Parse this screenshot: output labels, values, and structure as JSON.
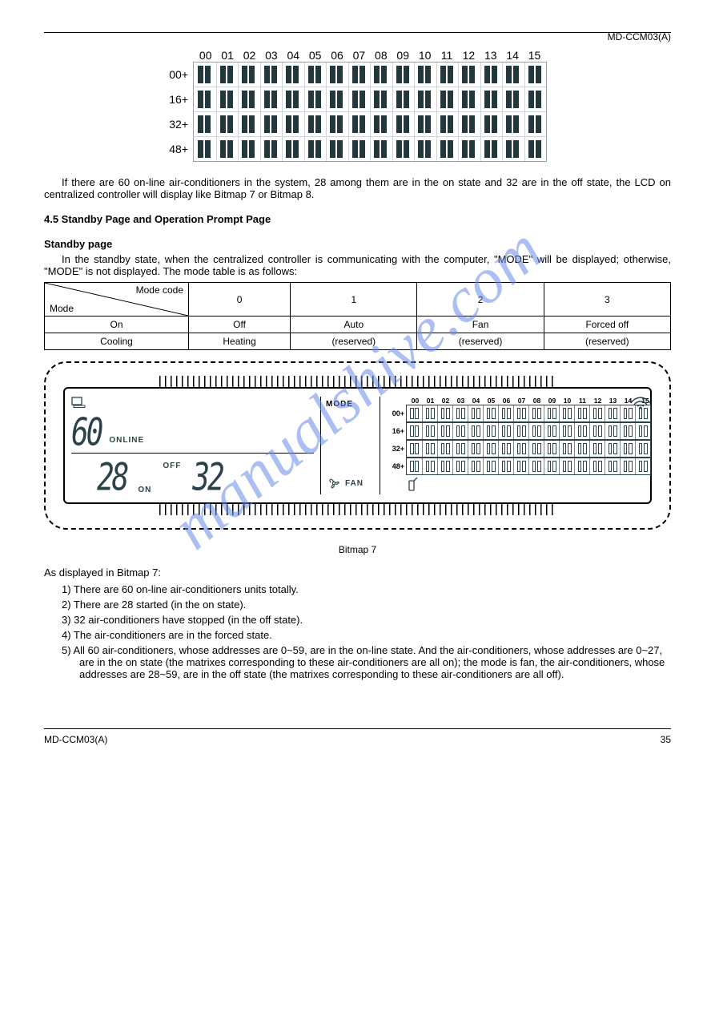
{
  "header": {
    "product": "MD-CCM03(A)"
  },
  "footer": {
    "product": "MD-CCM03(A)",
    "page": "35"
  },
  "watermark": "manualshive.com",
  "matrix1": {
    "cols": [
      "00",
      "01",
      "02",
      "03",
      "04",
      "05",
      "06",
      "07",
      "08",
      "09",
      "10",
      "11",
      "12",
      "13",
      "14",
      "15"
    ],
    "rows": [
      "00+",
      "16+",
      "32+",
      "48+"
    ]
  },
  "para1": "If there are 60 on-line air-conditioners in the system, 28 among them are in the on state and 32 are in the off state, the LCD on centralized controller will display like Bitmap 7 or Bitmap 8.",
  "sect45": "4.5 Standby Page and Operation Prompt Page",
  "standby_title": "Standby page",
  "standby_body": "In the standby state, when the centralized controller is communicating with the computer, \"MODE\" will be displayed; otherwise, \"MODE\" is not displayed. The mode table is as follows:",
  "table": {
    "diag_top": "Mode code",
    "diag_bot": "Mode",
    "cols": [
      "0",
      "1",
      "2",
      "3"
    ],
    "row1_label": "On",
    "row1": [
      "Off",
      "Auto",
      "Fan",
      "Forced off"
    ],
    "row2_label": "Cooling",
    "row2": [
      "Heating",
      "(reserved)",
      "(reserved)",
      "(reserved)"
    ]
  },
  "lcd": {
    "online_big": "60",
    "online_lbl": "ONLINE",
    "on_big": "28",
    "on_lbl": "ON",
    "off_lbl": "OFF",
    "off_big": "32",
    "mode": "MODE",
    "fan": "FAN",
    "cols": [
      "00",
      "01",
      "02",
      "03",
      "04",
      "05",
      "06",
      "07",
      "08",
      "09",
      "10",
      "11",
      "12",
      "13",
      "14",
      "15"
    ],
    "rows": [
      "00+",
      "16+",
      "32+",
      "48+"
    ]
  },
  "fig_caption": "Bitmap 7",
  "post_text": {
    "lead": "As displayed in Bitmap 7:",
    "items": [
      "1) There are 60 on-line air-conditioners units totally.",
      "2) There are 28 started (in the on state).",
      "3) 32 air-conditioners have stopped (in the off state).",
      "4) The air-conditioners are in the forced state.",
      "5) All 60 air-conditioners, whose addresses are 0~59, are in the on-line state. And the air-conditioners, whose addresses are 0~27, are in the on state (the matrixes corresponding to these air-conditioners are all on); the mode is fan, the air-conditioners, whose addresses are 28~59, are in the off state (the matrixes corresponding to these air-conditioners are all off)."
    ]
  }
}
